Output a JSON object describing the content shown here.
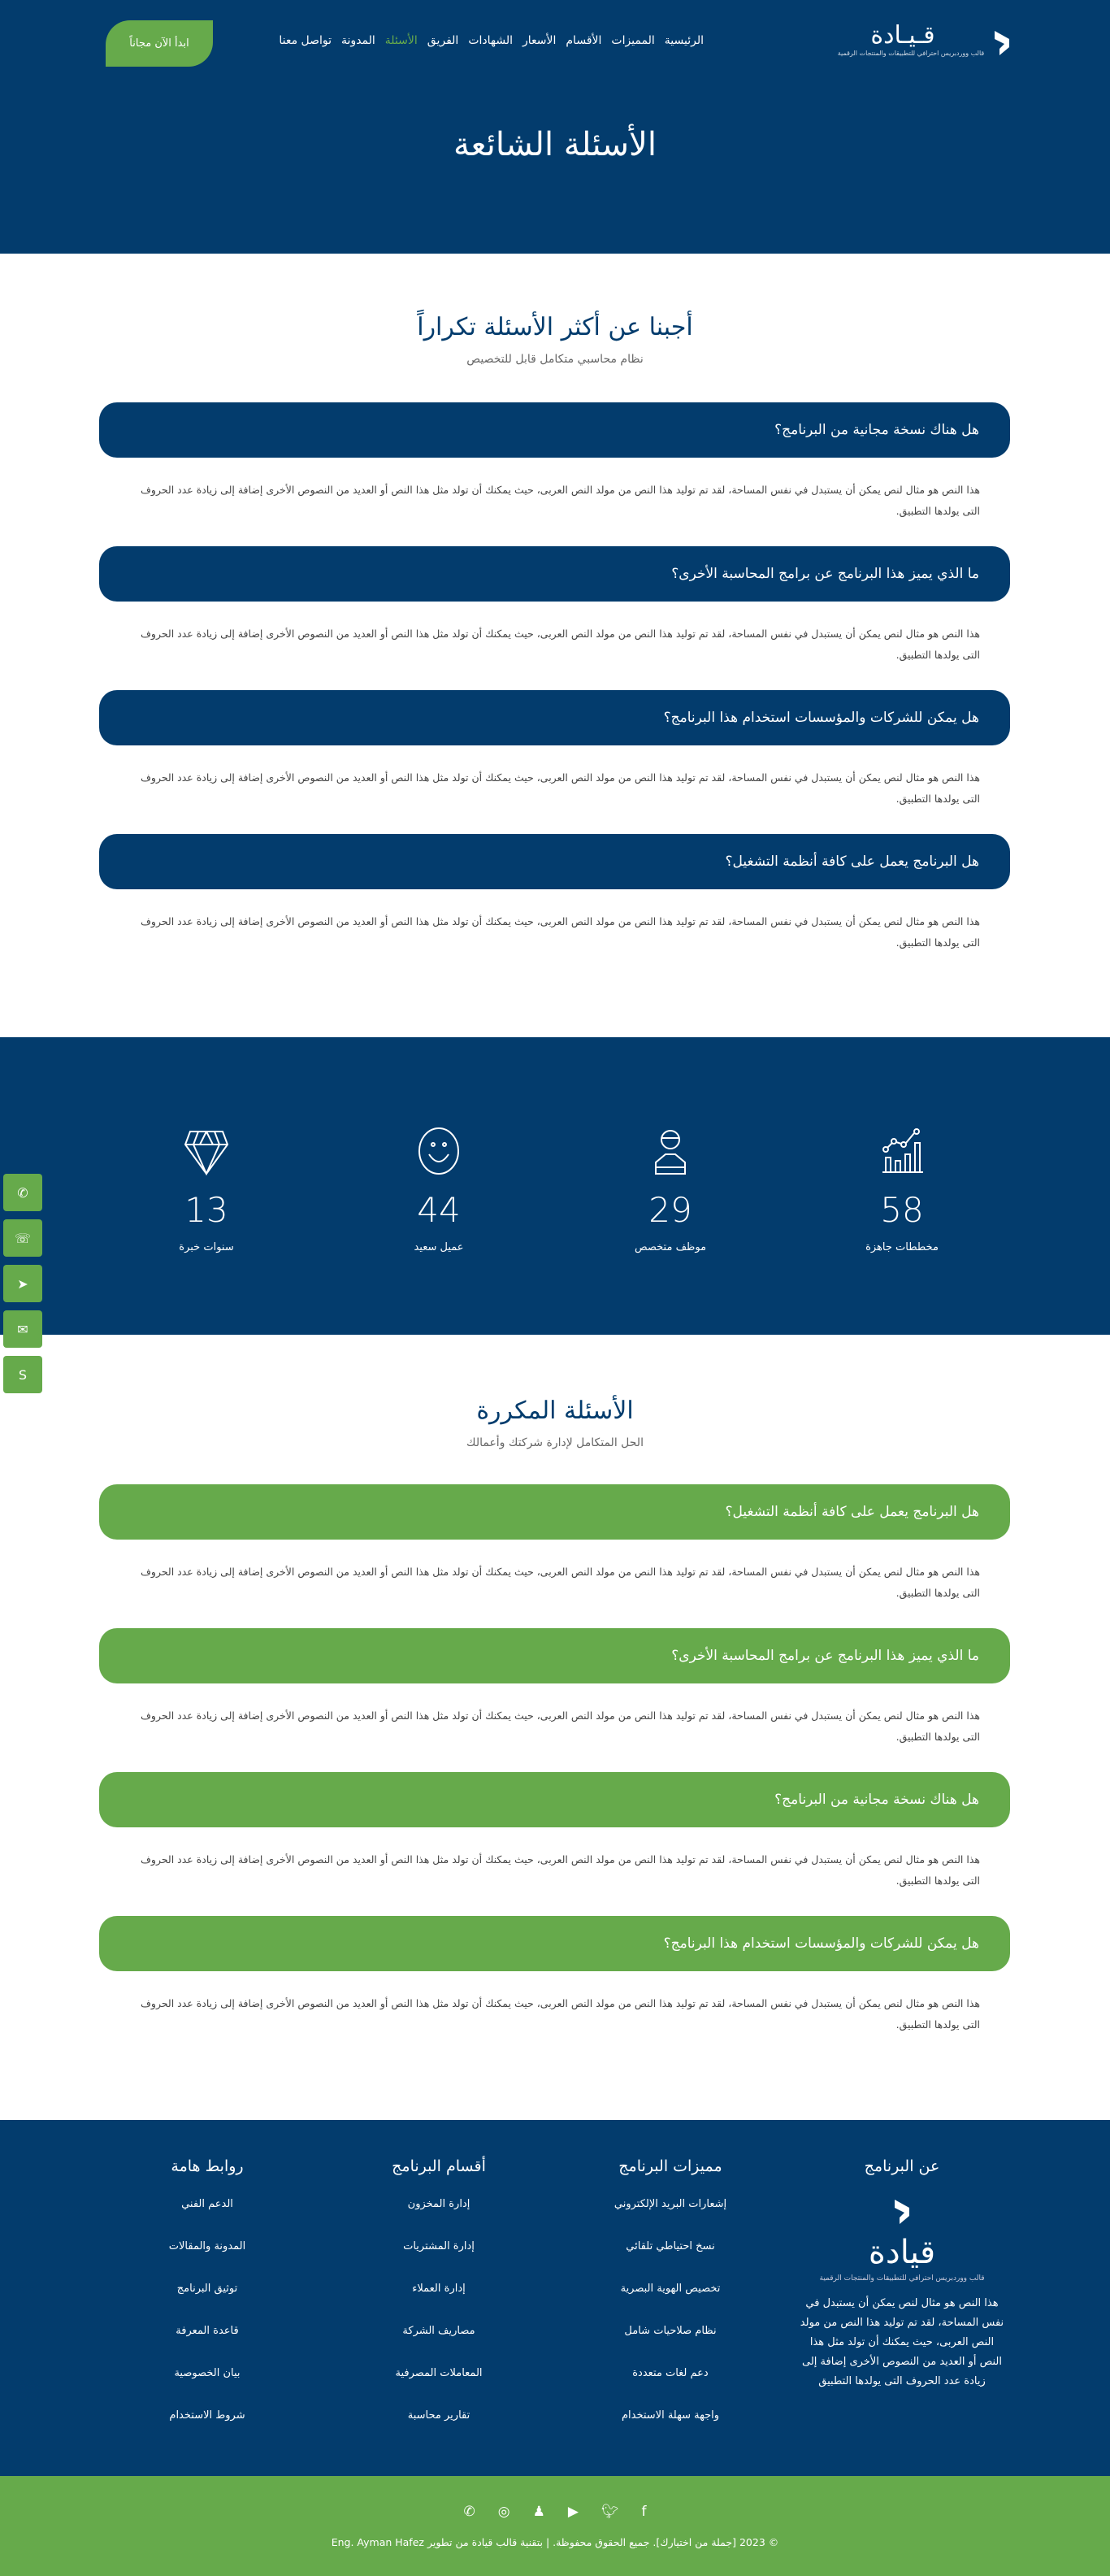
{
  "brand": {
    "name": "قـيـادة",
    "tagline": "قالب ووردبريس احترافي للتطبيقات والمنتجات الرقمية"
  },
  "nav": {
    "items": [
      "الرئيسية",
      "المميزات",
      "الأقسام",
      "الأسعار",
      "الشهادات",
      "الفريق",
      "الأسئلة",
      "المدونة",
      "تواصل معنا"
    ],
    "active": "الأسئلة",
    "cta": "ابدأ الآن مجاناً"
  },
  "hero": {
    "title": "الأسئلة الشائعة"
  },
  "faq1": {
    "title": "أجبنا عن أكثر الأسئلة تكراراً",
    "subtitle": "نظام محاسبي متكامل قابل للتخصيص",
    "items": [
      {
        "q": "هل هناك نسخة مجانية من البرنامج؟"
      },
      {
        "q": "ما الذي يميز هذا البرنامج عن برامج المحاسبة الأخرى؟"
      },
      {
        "q": "هل يمكن للشركات والمؤسسات استخدام هذا البرنامج؟"
      },
      {
        "q": "هل البرنامج يعمل على كافة أنظمة التشغيل؟"
      }
    ]
  },
  "answer": "هذا النص هو مثال لنص يمكن أن يستبدل في نفس المساحة، لقد تم توليد هذا النص من مولد النص العربى، حيث يمكنك أن تولد مثل هذا النص أو العديد من النصوص الأخرى إضافة إلى زيادة عدد الحروف التى يولدها التطبيق.",
  "stats": [
    {
      "value": "58",
      "label": "مخططات جاهزة",
      "icon": "chart-icon"
    },
    {
      "value": "29",
      "label": "موظف متخصص",
      "icon": "user-icon"
    },
    {
      "value": "44",
      "label": "عميل سعيد",
      "icon": "smile-icon"
    },
    {
      "value": "13",
      "label": "سنوات خبرة",
      "icon": "diamond-icon"
    }
  ],
  "floating": [
    "whatsapp-icon",
    "viber-icon",
    "telegram-icon",
    "messenger-icon",
    "skype-icon"
  ],
  "faq2": {
    "title": "الأسئلة المكررة",
    "subtitle": "الحل المتكامل لإدارة شركتك وأعمالك",
    "items": [
      {
        "q": "هل البرنامج يعمل على كافة أنظمة التشغيل؟"
      },
      {
        "q": "ما الذي يميز هذا البرنامج عن برامج المحاسبة الأخرى؟"
      },
      {
        "q": "هل هناك نسخة مجانية من البرنامج؟"
      },
      {
        "q": "هل يمكن للشركات والمؤسسات استخدام هذا البرنامج؟"
      }
    ]
  },
  "footer": {
    "about": {
      "title": "عن البرنامج",
      "brand": "قيادة",
      "tagline": "قالب ووردبريس احترافي للتطبيقات والمنتجات الرقمية",
      "text": "هذا النص هو مثال لنص يمكن أن يستبدل في نفس المساحة، لقد تم توليد هذا النص من مولد النص العربى، حيث يمكنك أن تولد مثل هذا النص أو العديد من النصوص الأخرى إضافة إلى زيادة عدد الحروف التى يولدها التطبيق"
    },
    "features": {
      "title": "مميزات البرنامج",
      "links": [
        "إشعارات البريد الإلكتروني",
        "نسخ احتياطي تلقائي",
        "تخصيص الهوية البصرية",
        "نظام صلاحيات شامل",
        "دعم لغات متعددة",
        "واجهة سهلة الاستخدام"
      ]
    },
    "sections": {
      "title": "أقسام البرنامج",
      "links": [
        "إدارة المخزون",
        "إدارة المشتريات",
        "إدارة العملاء",
        "مصاريف الشركة",
        "المعاملات المصرفية",
        "تقارير محاسبة"
      ]
    },
    "links": {
      "title": "روابط هامة",
      "links": [
        "الدعم الفني",
        "المدونة والمقالات",
        "توثيق البرنامج",
        "قاعدة المعرفة",
        "بيان الخصوصية",
        "شروط الاستخدام"
      ]
    },
    "social": [
      "whatsapp-icon",
      "instagram-icon",
      "snapchat-icon",
      "youtube-icon",
      "twitter-icon",
      "facebook-icon"
    ],
    "copyright": "© 2023 [جملة من اختيارك]. جميع الحقوق محفوظة. | بتقنية قالب قيادة من تطوير Eng. Ayman Hafez"
  },
  "colors": {
    "navy": "#033c6d",
    "green": "#66aa4b"
  }
}
